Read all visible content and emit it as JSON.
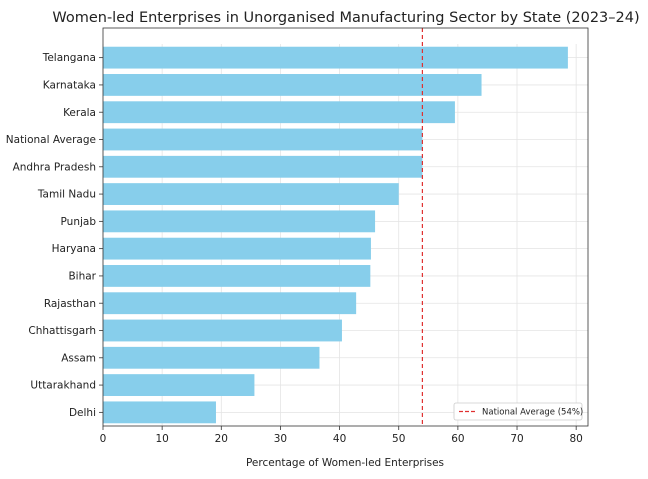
{
  "chart_data": {
    "type": "bar",
    "orientation": "horizontal",
    "title": "Women-led Enterprises in Unorganised Manufacturing Sector by State (2023–24)",
    "xlabel": "Percentage of Women-led Enterprises",
    "ylabel": "",
    "xlim": [
      0,
      82
    ],
    "xticks": [
      0,
      10,
      20,
      30,
      40,
      50,
      60,
      70,
      80
    ],
    "grid": true,
    "categories": [
      "Telangana",
      "Karnataka",
      "Kerala",
      "National Average",
      "Andhra Pradesh",
      "Tamil Nadu",
      "Punjab",
      "Haryana",
      "Bihar",
      "Rajasthan",
      "Chhattisgarh",
      "Assam",
      "Uttarakhand",
      "Delhi"
    ],
    "values": [
      78.6,
      64.0,
      59.5,
      54.0,
      54.0,
      50.0,
      46.0,
      45.3,
      45.2,
      42.8,
      40.4,
      36.6,
      25.6,
      19.1
    ],
    "bar_color": "#87ceeb",
    "reference_line": {
      "value": 54,
      "label": "National Average (54%)",
      "color": "#e03030",
      "style": "dashed"
    },
    "legend_position": "bottom-right"
  }
}
